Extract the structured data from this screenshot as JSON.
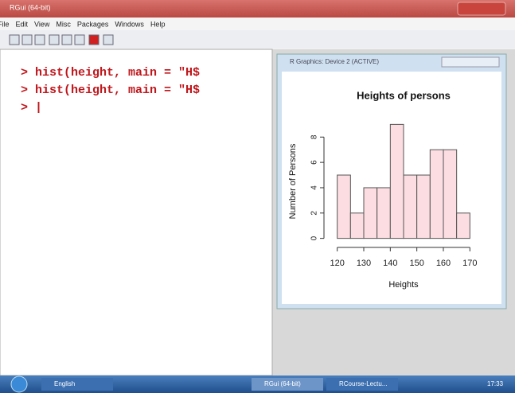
{
  "window": {
    "title": "RGui (64-bit)"
  },
  "menu": [
    "File",
    "Edit",
    "View",
    "Misc",
    "Packages",
    "Windows",
    "Help"
  ],
  "console": {
    "lines": [
      "> hist(height, main = \"H$",
      "> hist(height, main = \"H$",
      "> |"
    ]
  },
  "graphics_device": {
    "title": "R Graphics: Device 2 (ACTIVE)"
  },
  "taskbar": {
    "items": [
      "English",
      "RGui (64-bit)",
      "RCourse-Lectu..."
    ],
    "clock": "17:33"
  },
  "chart_data": {
    "type": "histogram",
    "title": "Heights of persons",
    "x_label": "Heights",
    "y_label": "Number of Persons",
    "bins": [
      120,
      125,
      130,
      135,
      140,
      145,
      150,
      155,
      160,
      165,
      170
    ],
    "values": [
      5,
      2,
      4,
      4,
      9,
      5,
      5,
      7,
      7,
      2
    ],
    "color": "#fcdde2",
    "xlim": [
      115,
      175
    ],
    "ylim": [
      -0.4,
      9.4
    ],
    "xticks": [
      120,
      130,
      140,
      150,
      160,
      170
    ],
    "yticks": [
      0,
      2,
      4,
      6,
      8
    ]
  }
}
